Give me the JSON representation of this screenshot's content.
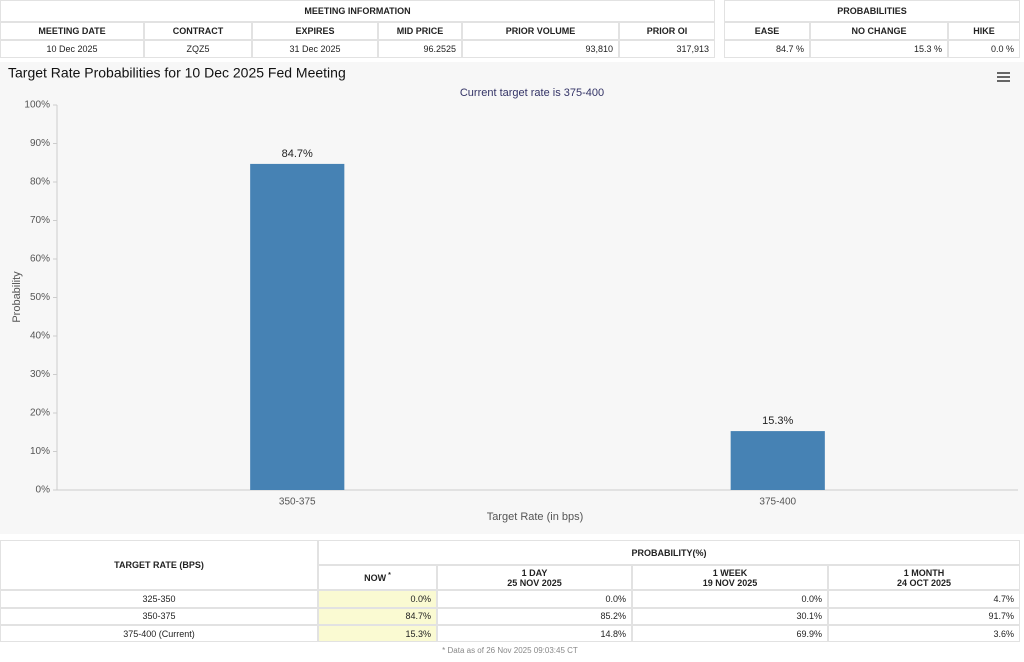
{
  "meeting_table": {
    "title": "MEETING INFORMATION",
    "headers": [
      "MEETING DATE",
      "CONTRACT",
      "EXPIRES",
      "MID PRICE",
      "PRIOR VOLUME",
      "PRIOR OI"
    ],
    "row": [
      "10 Dec 2025",
      "ZQZ5",
      "31 Dec 2025",
      "96.2525",
      "93,810",
      "317,913"
    ]
  },
  "probabilities_table": {
    "title": "PROBABILITIES",
    "headers": [
      "EASE",
      "NO CHANGE",
      "HIKE"
    ],
    "row": [
      "84.7 %",
      "15.3 %",
      "0.0 %"
    ]
  },
  "chart_data": {
    "type": "bar",
    "title": "Target Rate Probabilities for 10 Dec 2025 Fed Meeting",
    "subtitle": "Current target rate is 375-400",
    "x_label": "Target Rate (in bps)",
    "y_label": "Probability",
    "categories": [
      "350-375",
      "375-400"
    ],
    "values": [
      84.7,
      15.3
    ],
    "value_labels": [
      "84.7%",
      "15.3%"
    ],
    "color": "#4682b4",
    "ylim": [
      0,
      100
    ],
    "yticks": [
      {
        "value": 0,
        "label": "0%"
      },
      {
        "value": 10,
        "label": "10%"
      },
      {
        "value": 20,
        "label": "20%"
      },
      {
        "value": 30,
        "label": "30%"
      },
      {
        "value": 40,
        "label": "40%"
      },
      {
        "value": 50,
        "label": "50%"
      },
      {
        "value": 60,
        "label": "60%"
      },
      {
        "value": 70,
        "label": "70%"
      },
      {
        "value": 80,
        "label": "80%"
      },
      {
        "value": 90,
        "label": "90%"
      },
      {
        "value": 100,
        "label": "100%"
      }
    ],
    "grid": false
  },
  "probability_table": {
    "row_header": "TARGET RATE (BPS)",
    "group_header": "PROBABILITY(%)",
    "columns": [
      {
        "label": "NOW",
        "note": "*"
      },
      {
        "label": "1 DAY",
        "date": "25 NOV 2025"
      },
      {
        "label": "1 WEEK",
        "date": "19 NOV 2025"
      },
      {
        "label": "1 MONTH",
        "date": "24 OCT 2025"
      }
    ],
    "rows": [
      [
        "325-350",
        "0.0%",
        "0.0%",
        "0.0%",
        "4.7%"
      ],
      [
        "350-375",
        "84.7%",
        "85.2%",
        "30.1%",
        "91.7%"
      ],
      [
        "375-400 (Current)",
        "15.3%",
        "14.8%",
        "69.9%",
        "3.6%"
      ]
    ],
    "footnote": "* Data as of 26 Nov 2025 09:03:45 CT"
  }
}
